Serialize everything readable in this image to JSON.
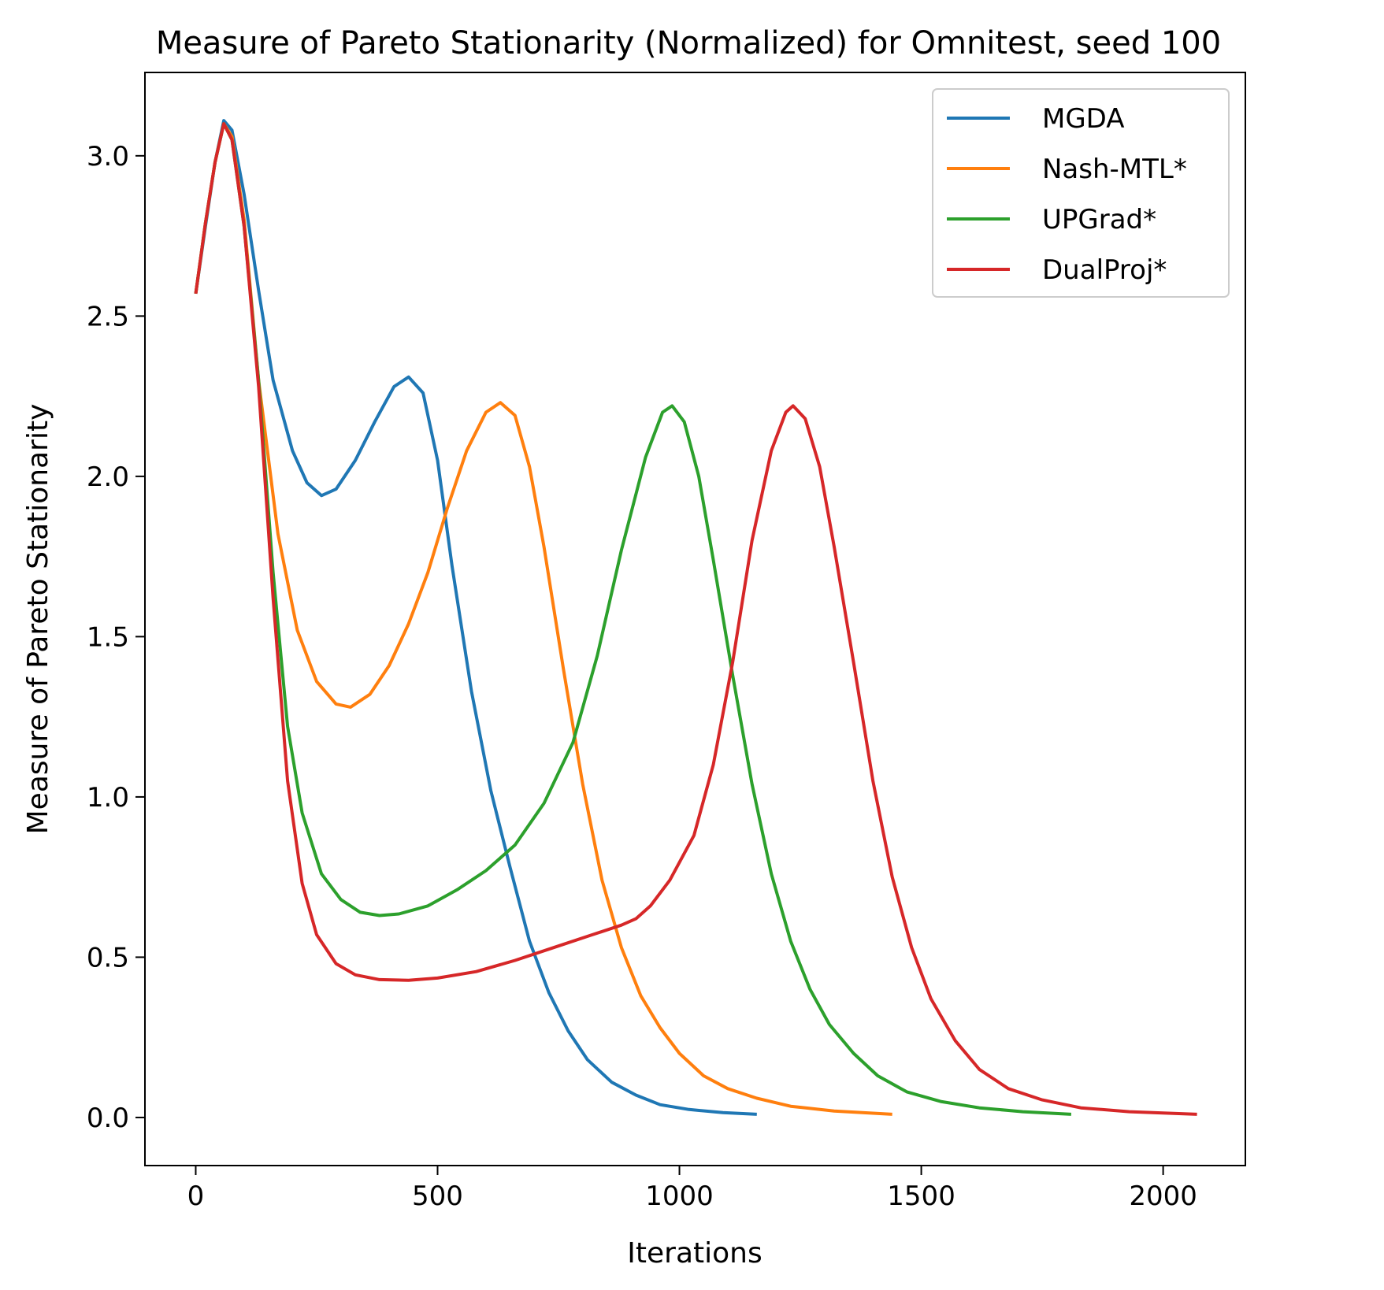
{
  "chart_data": {
    "type": "line",
    "title": "Measure of Pareto Stationarity (Normalized) for Omnitest, seed 100",
    "xlabel": "Iterations",
    "ylabel": "Measure of Pareto Stationarity",
    "xlim": [
      -105,
      2170
    ],
    "ylim": [
      -0.15,
      3.26
    ],
    "xticks": [
      0,
      500,
      1000,
      1500,
      2000
    ],
    "xtick_labels": [
      "0",
      "500",
      "1000",
      "1500",
      "2000"
    ],
    "yticks": [
      0.0,
      0.5,
      1.0,
      1.5,
      2.0,
      2.5,
      3.0
    ],
    "ytick_labels": [
      "0.0",
      "0.5",
      "1.0",
      "1.5",
      "2.0",
      "2.5",
      "3.0"
    ],
    "grid": false,
    "legend_position": "top-right",
    "series": [
      {
        "name": "MGDA",
        "color": "#1f77b4",
        "points": [
          [
            0,
            2.57
          ],
          [
            20,
            2.78
          ],
          [
            40,
            2.98
          ],
          [
            58,
            3.11
          ],
          [
            75,
            3.08
          ],
          [
            100,
            2.88
          ],
          [
            130,
            2.58
          ],
          [
            160,
            2.3
          ],
          [
            200,
            2.08
          ],
          [
            230,
            1.98
          ],
          [
            260,
            1.94
          ],
          [
            290,
            1.96
          ],
          [
            330,
            2.05
          ],
          [
            370,
            2.17
          ],
          [
            410,
            2.28
          ],
          [
            440,
            2.31
          ],
          [
            470,
            2.26
          ],
          [
            500,
            2.05
          ],
          [
            530,
            1.72
          ],
          [
            570,
            1.33
          ],
          [
            610,
            1.02
          ],
          [
            650,
            0.78
          ],
          [
            690,
            0.55
          ],
          [
            730,
            0.39
          ],
          [
            770,
            0.27
          ],
          [
            810,
            0.18
          ],
          [
            860,
            0.11
          ],
          [
            910,
            0.07
          ],
          [
            960,
            0.04
          ],
          [
            1020,
            0.025
          ],
          [
            1090,
            0.015
          ],
          [
            1160,
            0.01
          ]
        ]
      },
      {
        "name": "Nash-MTL*",
        "color": "#ff7f0e",
        "points": [
          [
            0,
            2.57
          ],
          [
            20,
            2.79
          ],
          [
            40,
            2.98
          ],
          [
            58,
            3.1
          ],
          [
            75,
            3.06
          ],
          [
            100,
            2.8
          ],
          [
            130,
            2.3
          ],
          [
            170,
            1.82
          ],
          [
            210,
            1.52
          ],
          [
            250,
            1.36
          ],
          [
            290,
            1.29
          ],
          [
            320,
            1.28
          ],
          [
            360,
            1.32
          ],
          [
            400,
            1.41
          ],
          [
            440,
            1.54
          ],
          [
            480,
            1.7
          ],
          [
            520,
            1.9
          ],
          [
            560,
            2.08
          ],
          [
            600,
            2.2
          ],
          [
            630,
            2.23
          ],
          [
            660,
            2.19
          ],
          [
            690,
            2.03
          ],
          [
            720,
            1.78
          ],
          [
            760,
            1.4
          ],
          [
            800,
            1.04
          ],
          [
            840,
            0.74
          ],
          [
            880,
            0.53
          ],
          [
            920,
            0.38
          ],
          [
            960,
            0.28
          ],
          [
            1000,
            0.2
          ],
          [
            1050,
            0.13
          ],
          [
            1100,
            0.09
          ],
          [
            1160,
            0.06
          ],
          [
            1230,
            0.035
          ],
          [
            1320,
            0.02
          ],
          [
            1440,
            0.01
          ]
        ]
      },
      {
        "name": "UPGrad*",
        "color": "#2ca02c",
        "points": [
          [
            0,
            2.57
          ],
          [
            20,
            2.79
          ],
          [
            40,
            2.98
          ],
          [
            58,
            3.1
          ],
          [
            75,
            3.05
          ],
          [
            100,
            2.78
          ],
          [
            130,
            2.3
          ],
          [
            160,
            1.7
          ],
          [
            190,
            1.22
          ],
          [
            220,
            0.95
          ],
          [
            260,
            0.76
          ],
          [
            300,
            0.68
          ],
          [
            340,
            0.64
          ],
          [
            380,
            0.63
          ],
          [
            420,
            0.635
          ],
          [
            480,
            0.66
          ],
          [
            540,
            0.71
          ],
          [
            600,
            0.77
          ],
          [
            660,
            0.85
          ],
          [
            720,
            0.98
          ],
          [
            780,
            1.17
          ],
          [
            830,
            1.44
          ],
          [
            880,
            1.77
          ],
          [
            930,
            2.06
          ],
          [
            965,
            2.2
          ],
          [
            985,
            2.22
          ],
          [
            1010,
            2.17
          ],
          [
            1040,
            2.0
          ],
          [
            1070,
            1.74
          ],
          [
            1110,
            1.38
          ],
          [
            1150,
            1.04
          ],
          [
            1190,
            0.76
          ],
          [
            1230,
            0.55
          ],
          [
            1270,
            0.4
          ],
          [
            1310,
            0.29
          ],
          [
            1360,
            0.2
          ],
          [
            1410,
            0.13
          ],
          [
            1470,
            0.08
          ],
          [
            1540,
            0.05
          ],
          [
            1620,
            0.03
          ],
          [
            1710,
            0.018
          ],
          [
            1810,
            0.01
          ]
        ]
      },
      {
        "name": "DualProj*",
        "color": "#d62728",
        "points": [
          [
            0,
            2.57
          ],
          [
            20,
            2.79
          ],
          [
            40,
            2.98
          ],
          [
            58,
            3.1
          ],
          [
            75,
            3.05
          ],
          [
            100,
            2.78
          ],
          [
            130,
            2.28
          ],
          [
            160,
            1.62
          ],
          [
            190,
            1.05
          ],
          [
            220,
            0.73
          ],
          [
            250,
            0.57
          ],
          [
            290,
            0.48
          ],
          [
            330,
            0.445
          ],
          [
            380,
            0.43
          ],
          [
            440,
            0.428
          ],
          [
            500,
            0.435
          ],
          [
            580,
            0.455
          ],
          [
            660,
            0.49
          ],
          [
            740,
            0.53
          ],
          [
            820,
            0.57
          ],
          [
            880,
            0.6
          ],
          [
            910,
            0.62
          ],
          [
            940,
            0.66
          ],
          [
            980,
            0.74
          ],
          [
            1030,
            0.88
          ],
          [
            1070,
            1.1
          ],
          [
            1110,
            1.42
          ],
          [
            1150,
            1.8
          ],
          [
            1190,
            2.08
          ],
          [
            1220,
            2.2
          ],
          [
            1235,
            2.22
          ],
          [
            1260,
            2.18
          ],
          [
            1290,
            2.03
          ],
          [
            1320,
            1.78
          ],
          [
            1360,
            1.42
          ],
          [
            1400,
            1.05
          ],
          [
            1440,
            0.75
          ],
          [
            1480,
            0.53
          ],
          [
            1520,
            0.37
          ],
          [
            1570,
            0.24
          ],
          [
            1620,
            0.15
          ],
          [
            1680,
            0.09
          ],
          [
            1750,
            0.055
          ],
          [
            1830,
            0.03
          ],
          [
            1930,
            0.018
          ],
          [
            2070,
            0.01
          ]
        ]
      }
    ]
  }
}
